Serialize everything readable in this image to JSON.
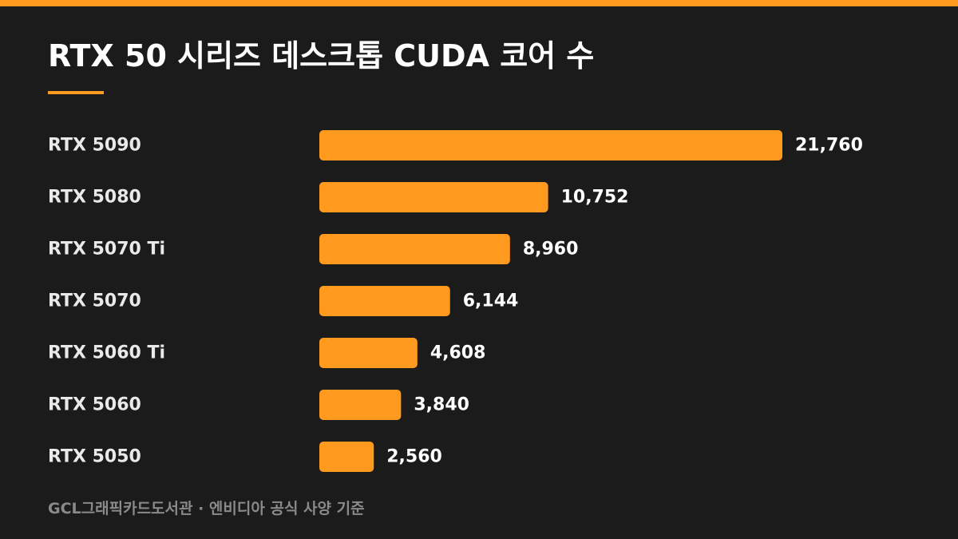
{
  "accent_color": "#ff9a1f",
  "background_color": "#1b1b1b",
  "chart_data": {
    "type": "bar",
    "orientation": "horizontal",
    "title": "RTX 50 시리즈 데스크톱 CUDA 코어 수",
    "categories": [
      "RTX 5090",
      "RTX 5080",
      "RTX 5070 Ti",
      "RTX 5070",
      "RTX 5060 Ti",
      "RTX 5060",
      "RTX 5050"
    ],
    "values": [
      21760,
      10752,
      8960,
      6144,
      4608,
      3840,
      2560
    ],
    "value_labels": [
      "21,760",
      "10,752",
      "8,960",
      "6,144",
      "4,608",
      "3,840",
      "2,560"
    ],
    "xlim": [
      0,
      21760
    ],
    "grid": false,
    "legend": "none",
    "bar_color": "#ff9a1f"
  },
  "footer": {
    "source": "GCL그래픽카드도서관 · 엔비디아 공식 사양 기준"
  }
}
